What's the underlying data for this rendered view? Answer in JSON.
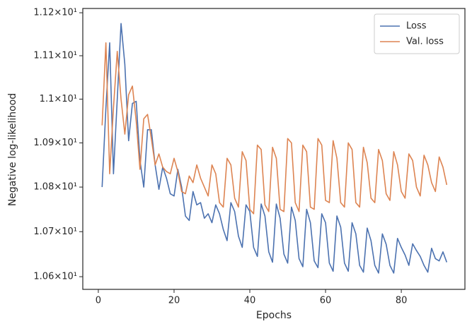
{
  "chart_data": {
    "type": "line",
    "xlabel": "Epochs",
    "ylabel": "Negative log-likelihood",
    "x": [
      1,
      2,
      3,
      4,
      5,
      6,
      7,
      8,
      9,
      10,
      11,
      12,
      13,
      14,
      15,
      16,
      17,
      18,
      19,
      20,
      21,
      22,
      23,
      24,
      25,
      26,
      27,
      28,
      29,
      30,
      31,
      32,
      33,
      34,
      35,
      36,
      37,
      38,
      39,
      40,
      41,
      42,
      43,
      44,
      45,
      46,
      47,
      48,
      49,
      50,
      51,
      52,
      53,
      54,
      55,
      56,
      57,
      58,
      59,
      60,
      61,
      62,
      63,
      64,
      65,
      66,
      67,
      68,
      69,
      70,
      71,
      72,
      73,
      74,
      75,
      76,
      77,
      78,
      79,
      80,
      81,
      82,
      83,
      84,
      85,
      86,
      87,
      88,
      89,
      90,
      91,
      92
    ],
    "series": [
      {
        "name": "Loss",
        "color": "#4c72b0",
        "values": [
          10.8,
          10.98,
          11.13,
          10.83,
          11.0,
          11.175,
          11.08,
          10.905,
          10.99,
          10.995,
          10.86,
          10.8,
          10.93,
          10.93,
          10.85,
          10.795,
          10.845,
          10.82,
          10.785,
          10.78,
          10.84,
          10.8,
          10.735,
          10.725,
          10.79,
          10.76,
          10.765,
          10.73,
          10.74,
          10.72,
          10.76,
          10.74,
          10.705,
          10.68,
          10.765,
          10.745,
          10.69,
          10.665,
          10.76,
          10.745,
          10.665,
          10.645,
          10.762,
          10.735,
          10.655,
          10.632,
          10.762,
          10.73,
          10.65,
          10.63,
          10.755,
          10.725,
          10.64,
          10.622,
          10.75,
          10.72,
          10.635,
          10.62,
          10.74,
          10.72,
          10.63,
          10.612,
          10.735,
          10.71,
          10.63,
          10.612,
          10.72,
          10.695,
          10.625,
          10.61,
          10.708,
          10.68,
          10.625,
          10.608,
          10.695,
          10.672,
          10.625,
          10.608,
          10.685,
          10.665,
          10.648,
          10.625,
          10.673,
          10.658,
          10.645,
          10.625,
          10.61,
          10.663,
          10.64,
          10.635,
          10.655,
          10.632
        ]
      },
      {
        "name": "Val. loss",
        "color": "#dd8452",
        "values": [
          10.94,
          11.13,
          10.83,
          10.98,
          11.11,
          11.0,
          10.92,
          11.01,
          11.03,
          10.95,
          10.84,
          10.955,
          10.965,
          10.91,
          10.85,
          10.875,
          10.845,
          10.835,
          10.83,
          10.865,
          10.835,
          10.79,
          10.785,
          10.825,
          10.81,
          10.85,
          10.82,
          10.8,
          10.78,
          10.85,
          10.83,
          10.765,
          10.755,
          10.865,
          10.85,
          10.775,
          10.755,
          10.88,
          10.86,
          10.75,
          10.74,
          10.895,
          10.885,
          10.76,
          10.745,
          10.89,
          10.865,
          10.75,
          10.745,
          10.91,
          10.9,
          10.765,
          10.745,
          10.895,
          10.88,
          10.755,
          10.75,
          10.91,
          10.895,
          10.77,
          10.765,
          10.905,
          10.865,
          10.765,
          10.755,
          10.9,
          10.885,
          10.765,
          10.755,
          10.89,
          10.855,
          10.775,
          10.765,
          10.885,
          10.86,
          10.785,
          10.77,
          10.88,
          10.85,
          10.79,
          10.775,
          10.875,
          10.86,
          10.8,
          10.78,
          10.872,
          10.85,
          10.81,
          10.79,
          10.868,
          10.845,
          10.805
        ]
      }
    ],
    "xlim": [
      -4.1,
      96.8
    ],
    "xticks": [
      0,
      20,
      40,
      60,
      80
    ],
    "ylim": [
      10.572,
      11.21
    ],
    "ylog": true,
    "yticks": [
      {
        "value": 10.6,
        "label": "1.06×10¹"
      },
      {
        "value": 10.7,
        "label": "1.07×10¹"
      },
      {
        "value": 10.8,
        "label": "1.08×10¹"
      },
      {
        "value": 10.9,
        "label": "1.09×10¹"
      },
      {
        "value": 11.0,
        "label": "1.1×10¹"
      },
      {
        "value": 11.1,
        "label": "1.11×10¹"
      },
      {
        "value": 11.2,
        "label": "1.12×10¹"
      }
    ],
    "grid": false,
    "legend": "upper right"
  }
}
